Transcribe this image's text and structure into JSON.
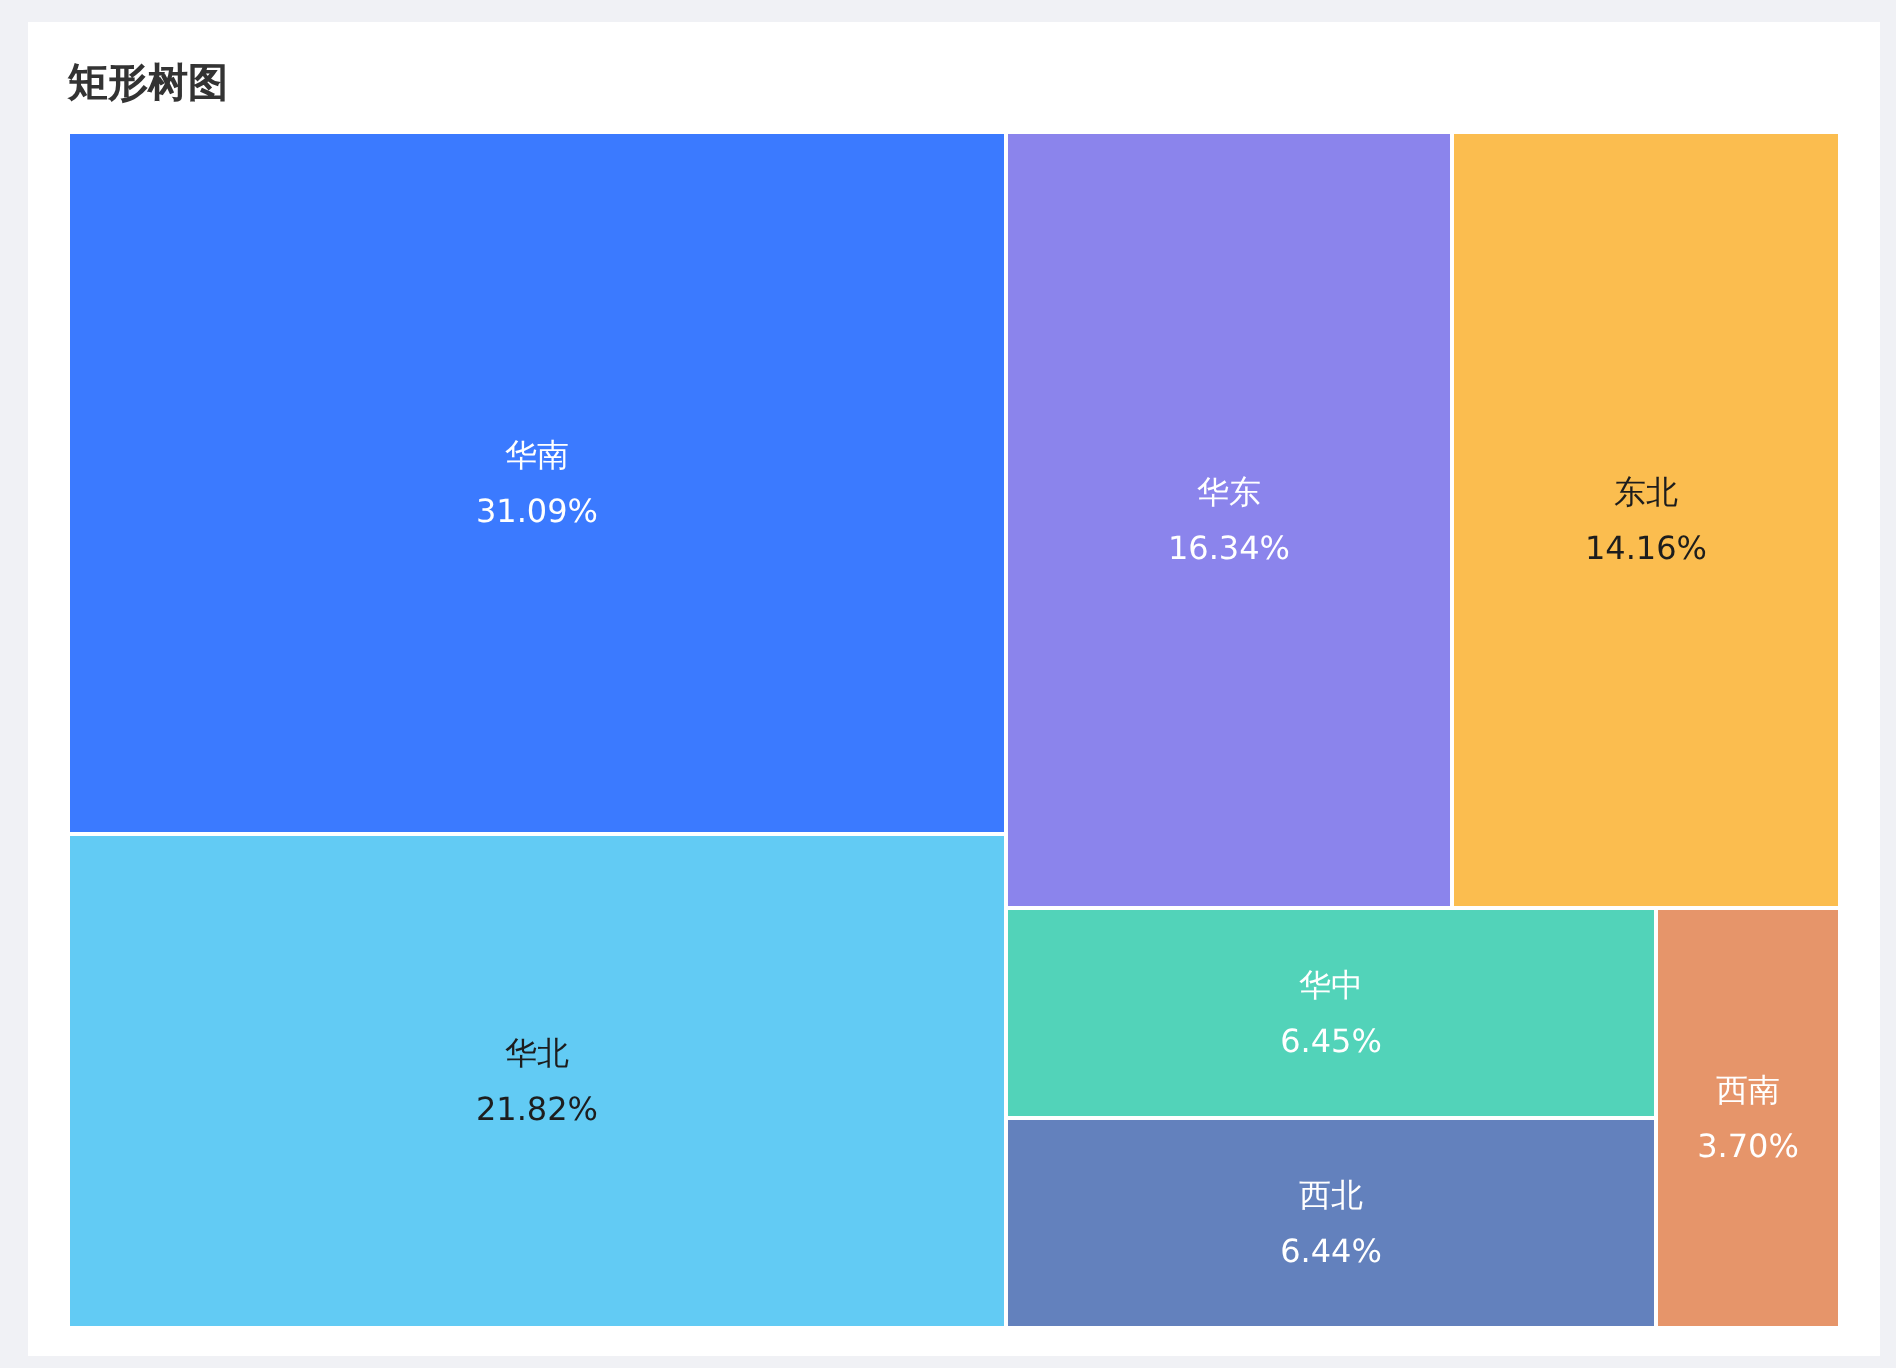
{
  "chart_data": {
    "type": "other",
    "title": "矩形树图",
    "categories": [
      "华南",
      "华北",
      "华东",
      "东北",
      "华中",
      "西北",
      "西南"
    ],
    "values": [
      31.09,
      21.82,
      16.34,
      14.16,
      6.45,
      6.44,
      3.7
    ],
    "value_labels": [
      "31.09%",
      "21.82%",
      "16.34%",
      "14.16%",
      "6.45%",
      "6.44%",
      "3.70%"
    ],
    "colors": [
      "#3b7aff",
      "#62cbf4",
      "#8b84ec",
      "#fbbd4f",
      "#52d3b9",
      "#6381bd",
      "#e6956a"
    ]
  }
}
